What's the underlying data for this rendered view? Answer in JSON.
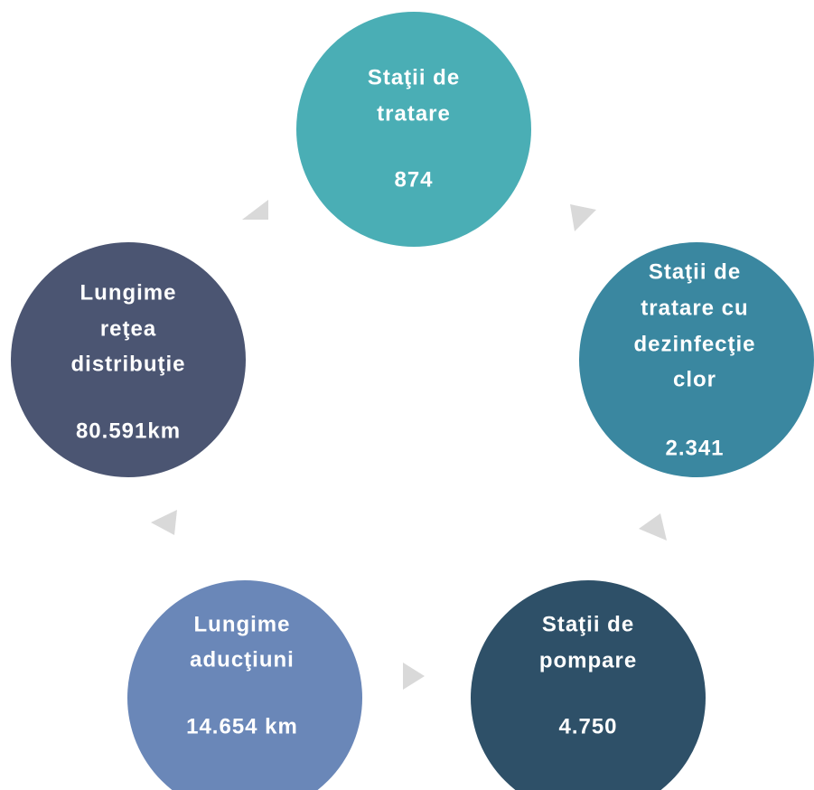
{
  "nodes": [
    {
      "lines": [
        "Staţii de",
        "tratare"
      ],
      "value": "874"
    },
    {
      "lines": [
        "Staţii de",
        "tratare cu",
        "dezinfecţie",
        "clor"
      ],
      "value": "2.341"
    },
    {
      "lines": [
        "Staţii de",
        "pompare"
      ],
      "value": "4.750"
    },
    {
      "lines": [
        "Lungime",
        "aducţiuni"
      ],
      "value": "14.654 km"
    },
    {
      "lines": [
        "Lungime",
        "reţea",
        "distribuţie"
      ],
      "value": "80.591km"
    }
  ]
}
